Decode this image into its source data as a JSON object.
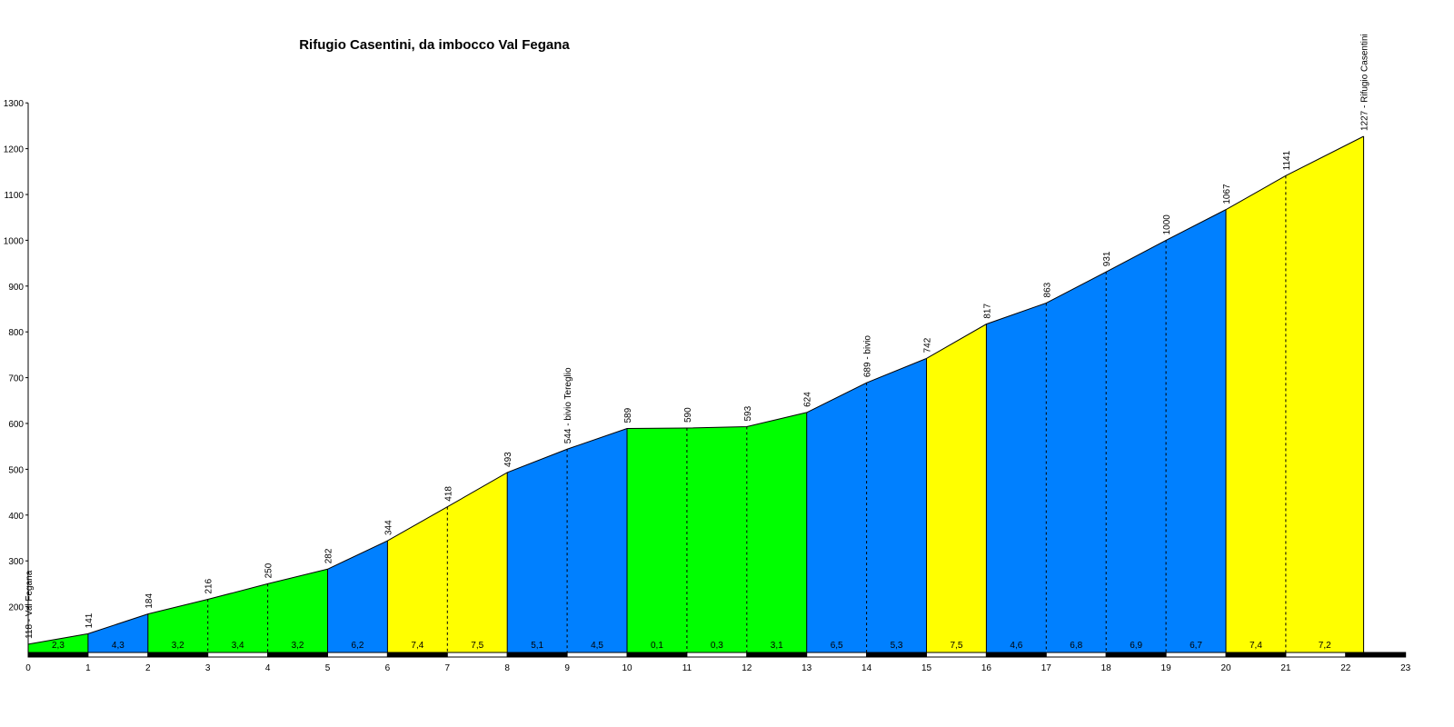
{
  "chart_data": {
    "type": "area",
    "title": "Rifugio Casentini, da imbocco Val Fegana",
    "xlabel": "",
    "ylabel": "",
    "xlim": [
      0,
      23
    ],
    "ylim": [
      100,
      1300
    ],
    "x_ticks": [
      0,
      1,
      2,
      3,
      4,
      5,
      6,
      7,
      8,
      9,
      10,
      11,
      12,
      13,
      14,
      15,
      16,
      17,
      18,
      19,
      20,
      21,
      22,
      23
    ],
    "y_ticks": [
      200,
      300,
      400,
      500,
      600,
      700,
      800,
      900,
      1000,
      1100,
      1200,
      1300
    ],
    "points": [
      {
        "x": 0,
        "y": 118,
        "label": "118 - Val Fegana"
      },
      {
        "x": 1,
        "y": 141,
        "label": "141"
      },
      {
        "x": 2,
        "y": 184,
        "label": "184"
      },
      {
        "x": 3,
        "y": 216,
        "label": "216"
      },
      {
        "x": 4,
        "y": 250,
        "label": "250"
      },
      {
        "x": 5,
        "y": 282,
        "label": "282"
      },
      {
        "x": 6,
        "y": 344,
        "label": "344"
      },
      {
        "x": 7,
        "y": 418,
        "label": "418"
      },
      {
        "x": 8,
        "y": 493,
        "label": "493"
      },
      {
        "x": 9,
        "y": 544,
        "label": "544 - bivio Tereglio"
      },
      {
        "x": 10,
        "y": 589,
        "label": "589"
      },
      {
        "x": 11,
        "y": 590,
        "label": "590"
      },
      {
        "x": 12,
        "y": 593,
        "label": "593"
      },
      {
        "x": 13,
        "y": 624,
        "label": "624"
      },
      {
        "x": 14,
        "y": 689,
        "label": "689 - bivio"
      },
      {
        "x": 15,
        "y": 742,
        "label": "742"
      },
      {
        "x": 16,
        "y": 817,
        "label": "817"
      },
      {
        "x": 17,
        "y": 863,
        "label": "863"
      },
      {
        "x": 18,
        "y": 931,
        "label": "931"
      },
      {
        "x": 19,
        "y": 1000,
        "label": "1000"
      },
      {
        "x": 20,
        "y": 1067,
        "label": "1067"
      },
      {
        "x": 21,
        "y": 1141,
        "label": "1141"
      },
      {
        "x": 22.3,
        "y": 1227,
        "label": "1227 - Rifugio Casentini"
      }
    ],
    "segments": [
      {
        "grade": "2,3",
        "color": "#00ff00"
      },
      {
        "grade": "4,3",
        "color": "#0080ff"
      },
      {
        "grade": "3,2",
        "color": "#00ff00"
      },
      {
        "grade": "3,4",
        "color": "#00ff00"
      },
      {
        "grade": "3,2",
        "color": "#00ff00"
      },
      {
        "grade": "6,2",
        "color": "#0080ff"
      },
      {
        "grade": "7,4",
        "color": "#ffff00"
      },
      {
        "grade": "7,5",
        "color": "#ffff00"
      },
      {
        "grade": "5,1",
        "color": "#0080ff"
      },
      {
        "grade": "4,5",
        "color": "#0080ff"
      },
      {
        "grade": "0,1",
        "color": "#00ff00"
      },
      {
        "grade": "0,3",
        "color": "#00ff00"
      },
      {
        "grade": "3,1",
        "color": "#00ff00"
      },
      {
        "grade": "6,5",
        "color": "#0080ff"
      },
      {
        "grade": "5,3",
        "color": "#0080ff"
      },
      {
        "grade": "7,5",
        "color": "#ffff00"
      },
      {
        "grade": "4,6",
        "color": "#0080ff"
      },
      {
        "grade": "6,8",
        "color": "#0080ff"
      },
      {
        "grade": "6,9",
        "color": "#0080ff"
      },
      {
        "grade": "6,7",
        "color": "#0080ff"
      },
      {
        "grade": "7,4",
        "color": "#ffff00"
      },
      {
        "grade": "7,2",
        "color": "#ffff00"
      }
    ],
    "grid": false
  }
}
